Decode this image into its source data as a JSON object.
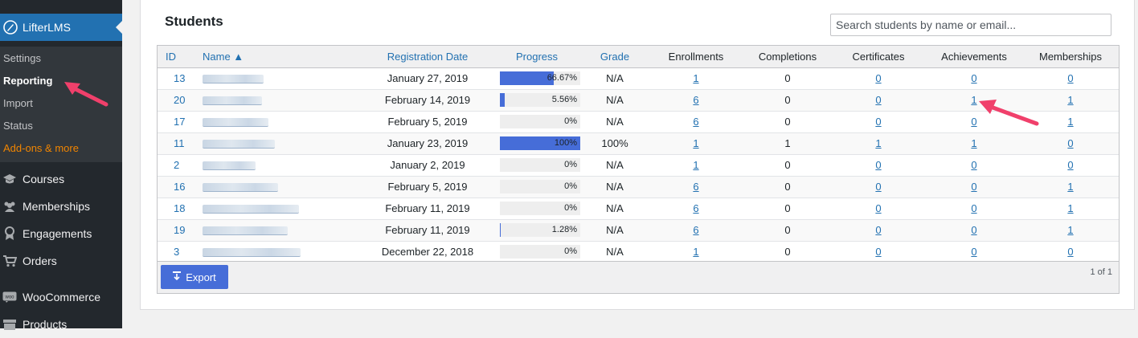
{
  "sidebar": {
    "brand": "LifterLMS",
    "submenu": [
      {
        "label": "Settings"
      },
      {
        "label": "Reporting"
      },
      {
        "label": "Import"
      },
      {
        "label": "Status"
      },
      {
        "label": "Add-ons & more"
      }
    ],
    "menu": [
      {
        "label": "Courses",
        "icon": "graduation-cap-icon"
      },
      {
        "label": "Memberships",
        "icon": "groups-icon"
      },
      {
        "label": "Engagements",
        "icon": "award-icon"
      },
      {
        "label": "Orders",
        "icon": "cart-icon"
      },
      {
        "label": "WooCommerce",
        "icon": "woo-icon"
      },
      {
        "label": "Products",
        "icon": "archive-icon"
      }
    ]
  },
  "students": {
    "title": "Students",
    "search_placeholder": "Search students by name or email...",
    "columns": [
      "ID",
      "Name ▲",
      "Registration Date",
      "Progress",
      "Grade",
      "Enrollments",
      "Completions",
      "Certificates",
      "Achievements",
      "Memberships"
    ],
    "rows": [
      {
        "id": "13",
        "date": "January 27, 2019",
        "progress": 66.67,
        "progress_label": "66.67%",
        "grade": "N/A",
        "enrollments": "1",
        "completions": "0",
        "certificates": "0",
        "achievements": "0",
        "memberships": "0"
      },
      {
        "id": "20",
        "date": "February 14, 2019",
        "progress": 5.56,
        "progress_label": "5.56%",
        "grade": "N/A",
        "enrollments": "6",
        "completions": "0",
        "certificates": "0",
        "achievements": "1",
        "memberships": "1"
      },
      {
        "id": "17",
        "date": "February 5, 2019",
        "progress": 0,
        "progress_label": "0%",
        "grade": "N/A",
        "enrollments": "6",
        "completions": "0",
        "certificates": "0",
        "achievements": "0",
        "memberships": "1"
      },
      {
        "id": "11",
        "date": "January 23, 2019",
        "progress": 100,
        "progress_label": "100%",
        "grade": "100%",
        "enrollments": "1",
        "completions": "1",
        "certificates": "1",
        "achievements": "1",
        "memberships": "0"
      },
      {
        "id": "2",
        "date": "January 2, 2019",
        "progress": 0,
        "progress_label": "0%",
        "grade": "N/A",
        "enrollments": "1",
        "completions": "0",
        "certificates": "0",
        "achievements": "0",
        "memberships": "0"
      },
      {
        "id": "16",
        "date": "February 5, 2019",
        "progress": 0,
        "progress_label": "0%",
        "grade": "N/A",
        "enrollments": "6",
        "completions": "0",
        "certificates": "0",
        "achievements": "0",
        "memberships": "1"
      },
      {
        "id": "18",
        "date": "February 11, 2019",
        "progress": 0,
        "progress_label": "0%",
        "grade": "N/A",
        "enrollments": "6",
        "completions": "0",
        "certificates": "0",
        "achievements": "0",
        "memberships": "1"
      },
      {
        "id": "19",
        "date": "February 11, 2019",
        "progress": 1.28,
        "progress_label": "1.28%",
        "grade": "N/A",
        "enrollments": "6",
        "completions": "0",
        "certificates": "0",
        "achievements": "0",
        "memberships": "1"
      },
      {
        "id": "3",
        "date": "December 22, 2018",
        "progress": 0,
        "progress_label": "0%",
        "grade": "N/A",
        "enrollments": "1",
        "completions": "0",
        "certificates": "0",
        "achievements": "0",
        "memberships": "0"
      }
    ],
    "export_label": "Export",
    "pagination": "1 of 1"
  },
  "colors": {
    "accent": "#2271b1",
    "progress_fill": "#466dd8",
    "annotation_arrow": "#f0406b",
    "addons": "#f18500"
  }
}
